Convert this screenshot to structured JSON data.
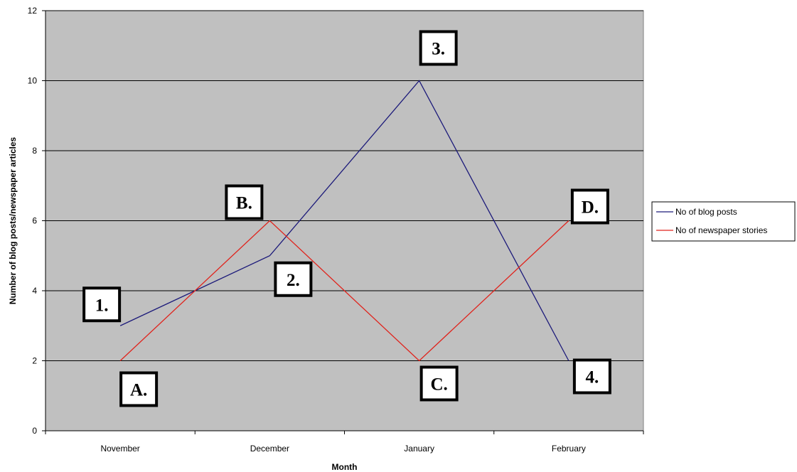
{
  "chart_data": {
    "type": "line",
    "title": "",
    "xlabel": "Month",
    "ylabel": "Number of blog posts/newspaper articles",
    "categories": [
      "November",
      "December",
      "January",
      "February"
    ],
    "ylim": [
      0,
      12
    ],
    "yticks": [
      0,
      2,
      4,
      6,
      8,
      10,
      12
    ],
    "grid": true,
    "legend_position": "right",
    "series": [
      {
        "name": "No of blog posts",
        "values": [
          3,
          5,
          10,
          2
        ],
        "color": "#1c1a7a"
      },
      {
        "name": "No of newspaper stories",
        "values": [
          2,
          6,
          2,
          6
        ],
        "color": "#e0231c"
      }
    ],
    "annotations": [
      {
        "label": "1.",
        "series": 0,
        "category": "November"
      },
      {
        "label": "2.",
        "series": 0,
        "category": "December"
      },
      {
        "label": "3.",
        "series": 0,
        "category": "January"
      },
      {
        "label": "4.",
        "series": 0,
        "category": "February"
      },
      {
        "label": "A.",
        "series": 1,
        "category": "November"
      },
      {
        "label": "B.",
        "series": 1,
        "category": "December"
      },
      {
        "label": "C.",
        "series": 1,
        "category": "January"
      },
      {
        "label": "D.",
        "series": 1,
        "category": "February"
      }
    ]
  },
  "colors": {
    "plot_background": "#c0c0c0",
    "gridline": "#000000"
  }
}
